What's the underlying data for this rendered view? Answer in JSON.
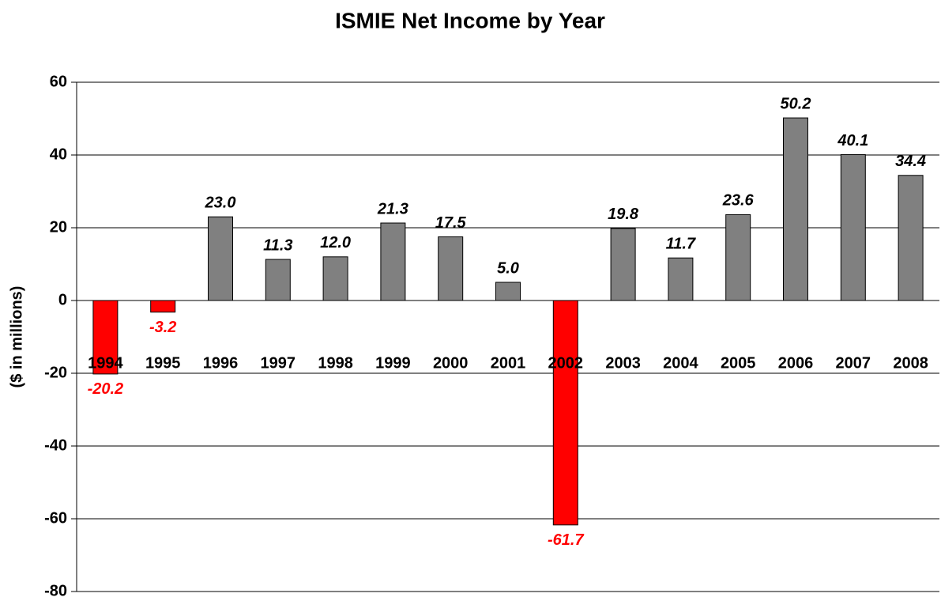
{
  "chart_data": {
    "type": "bar",
    "title": "ISMIE Net Income by Year",
    "ylabel": "($ in millions)",
    "categories": [
      "1994",
      "1995",
      "1996",
      "1997",
      "1998",
      "1999",
      "2000",
      "2001",
      "2002",
      "2003",
      "2004",
      "2005",
      "2006",
      "2007",
      "2008"
    ],
    "values": [
      -20.2,
      -3.2,
      23.0,
      11.3,
      12.0,
      21.3,
      17.5,
      5.0,
      -61.7,
      19.8,
      11.7,
      23.6,
      50.2,
      40.1,
      34.4
    ],
    "value_labels": [
      "-20.2",
      "-3.2",
      "23.0",
      "11.3",
      "12.0",
      "21.3",
      "17.5",
      "5.0",
      "-61.7",
      "19.8",
      "11.7",
      "23.6",
      "50.2",
      "40.1",
      "34.4"
    ],
    "color": "#808080",
    "negative_color": "#ff0000",
    "ylim": [
      -80,
      60
    ],
    "yticks": [
      -80,
      -60,
      -40,
      -20,
      0,
      20,
      40,
      60
    ],
    "grid": true
  }
}
